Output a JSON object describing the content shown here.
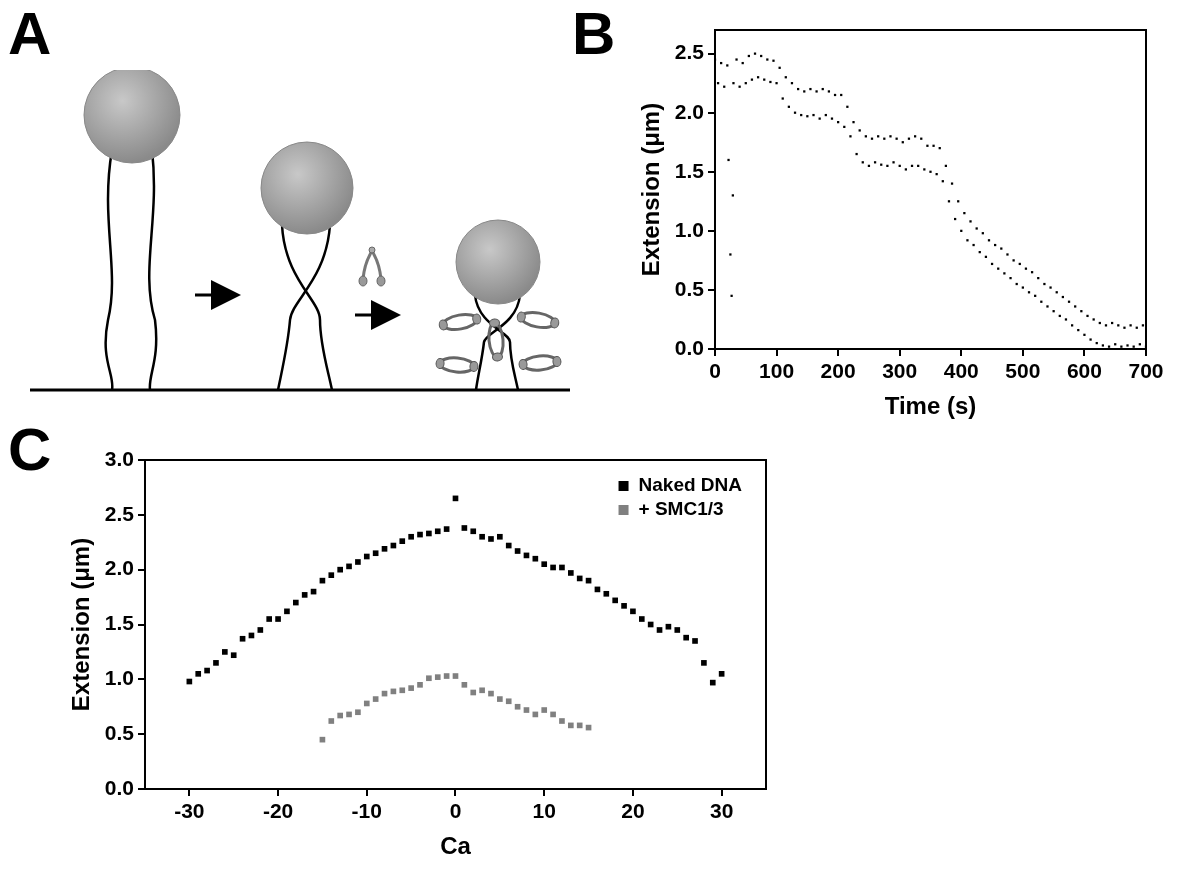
{
  "panel_labels": [
    "A",
    "B",
    "C"
  ],
  "chart_data": [
    {
      "type": "scatter",
      "x_label": "Time (s)",
      "y_label": "Extension (μm)",
      "x": [
        0,
        5,
        10,
        15,
        20,
        22,
        25,
        27,
        29,
        30,
        35,
        40,
        45,
        50,
        55,
        60,
        65,
        70,
        75,
        80,
        85,
        90,
        95,
        100,
        105,
        110,
        115,
        120,
        125,
        130,
        135,
        140,
        145,
        150,
        155,
        160,
        165,
        170,
        175,
        180,
        185,
        190,
        195,
        200,
        205,
        210,
        215,
        220,
        225,
        230,
        235,
        240,
        245,
        250,
        255,
        260,
        265,
        270,
        275,
        280,
        285,
        290,
        295,
        300,
        305,
        310,
        315,
        320,
        325,
        330,
        335,
        340,
        345,
        350,
        355,
        360,
        365,
        370,
        375,
        380,
        385,
        390,
        395,
        400,
        405,
        410,
        415,
        420,
        425,
        430,
        435,
        440,
        445,
        450,
        455,
        460,
        465,
        470,
        475,
        480,
        485,
        490,
        495,
        500,
        505,
        510,
        515,
        520,
        525,
        530,
        535,
        540,
        545,
        550,
        555,
        560,
        565,
        570,
        575,
        580,
        585,
        590,
        595,
        600,
        605,
        610,
        615,
        620,
        625,
        630,
        635,
        640,
        645,
        650,
        655,
        660,
        665,
        670,
        675,
        680,
        685,
        690,
        695,
        700
      ],
      "values": [
        2.45,
        2.25,
        2.42,
        2.22,
        2.4,
        1.6,
        0.8,
        0.45,
        1.3,
        2.25,
        2.45,
        2.22,
        2.42,
        2.25,
        2.48,
        2.28,
        2.5,
        2.3,
        2.48,
        2.28,
        2.45,
        2.26,
        2.44,
        2.25,
        2.38,
        2.12,
        2.3,
        2.05,
        2.25,
        2.0,
        2.2,
        1.98,
        2.18,
        1.97,
        2.2,
        1.98,
        2.18,
        1.95,
        2.2,
        1.98,
        2.18,
        1.95,
        2.15,
        1.92,
        2.15,
        1.88,
        2.05,
        1.8,
        1.92,
        1.65,
        1.85,
        1.58,
        1.8,
        1.55,
        1.78,
        1.58,
        1.8,
        1.56,
        1.78,
        1.55,
        1.8,
        1.58,
        1.78,
        1.55,
        1.75,
        1.52,
        1.78,
        1.55,
        1.8,
        1.55,
        1.78,
        1.52,
        1.72,
        1.5,
        1.72,
        1.48,
        1.7,
        1.42,
        1.55,
        1.25,
        1.4,
        1.1,
        1.25,
        1.0,
        1.15,
        0.92,
        1.08,
        0.88,
        1.02,
        0.82,
        0.98,
        0.78,
        0.92,
        0.72,
        0.88,
        0.68,
        0.85,
        0.64,
        0.8,
        0.6,
        0.75,
        0.55,
        0.72,
        0.52,
        0.68,
        0.48,
        0.65,
        0.45,
        0.6,
        0.4,
        0.55,
        0.36,
        0.52,
        0.32,
        0.48,
        0.28,
        0.44,
        0.25,
        0.4,
        0.2,
        0.36,
        0.16,
        0.32,
        0.12,
        0.28,
        0.08,
        0.25,
        0.05,
        0.22,
        0.03,
        0.2,
        0.02,
        0.22,
        0.04,
        0.2,
        0.02,
        0.18,
        0.03,
        0.2,
        0.02,
        0.18,
        0.04,
        0.2,
        0.02
      ],
      "color": "#000000",
      "marker": "square",
      "xlim": [
        0,
        700
      ],
      "xticks": [
        0,
        100,
        200,
        300,
        400,
        500,
        600,
        700
      ],
      "ylim": [
        0,
        2.7
      ],
      "yticks": [
        {
          "value": 0,
          "label": "0.0"
        },
        {
          "value": 0.5,
          "label": "0.5"
        },
        {
          "value": 1,
          "label": "1.0"
        },
        {
          "value": 1.5,
          "label": "1.5"
        },
        {
          "value": 2,
          "label": "2.0"
        },
        {
          "value": 2.5,
          "label": "2.5"
        }
      ],
      "grid": false
    },
    {
      "type": "scatter",
      "x_label": "Ca",
      "y_label": "Extension (μm)",
      "series": [
        {
          "name": "Naked DNA",
          "color": "#000000",
          "marker": "square",
          "x": [
            -30,
            -29,
            -28,
            -27,
            -26,
            -25,
            -24,
            -23,
            -22,
            -21,
            -20,
            -19,
            -18,
            -17,
            -16,
            -15,
            -14,
            -13,
            -12,
            -11,
            -10,
            -9,
            -8,
            -7,
            -6,
            -5,
            -4,
            -3,
            -2,
            -1,
            0,
            1,
            2,
            3,
            4,
            5,
            6,
            7,
            8,
            9,
            10,
            11,
            12,
            13,
            14,
            15,
            16,
            17,
            18,
            19,
            20,
            21,
            22,
            23,
            24,
            25,
            26,
            27,
            28,
            29,
            30
          ],
          "values": [
            0.98,
            1.05,
            1.08,
            1.15,
            1.25,
            1.22,
            1.37,
            1.4,
            1.45,
            1.55,
            1.55,
            1.62,
            1.7,
            1.77,
            1.8,
            1.9,
            1.95,
            2.0,
            2.03,
            2.07,
            2.12,
            2.15,
            2.19,
            2.22,
            2.26,
            2.3,
            2.32,
            2.33,
            2.35,
            2.37,
            2.65,
            2.38,
            2.35,
            2.3,
            2.28,
            2.3,
            2.22,
            2.17,
            2.13,
            2.1,
            2.05,
            2.02,
            2.02,
            1.97,
            1.92,
            1.9,
            1.82,
            1.78,
            1.72,
            1.67,
            1.62,
            1.55,
            1.5,
            1.45,
            1.48,
            1.45,
            1.38,
            1.35,
            1.15,
            0.97,
            1.05
          ]
        },
        {
          "name": "+ SMC1/3",
          "color": "#808080",
          "marker": "square",
          "x": [
            -15,
            -14,
            -13,
            -12,
            -11,
            -10,
            -9,
            -8,
            -7,
            -6,
            -5,
            -4,
            -3,
            -2,
            -1,
            0,
            1,
            2,
            3,
            4,
            5,
            6,
            7,
            8,
            9,
            10,
            11,
            12,
            13,
            14,
            15
          ],
          "values": [
            0.45,
            0.62,
            0.67,
            0.68,
            0.7,
            0.78,
            0.82,
            0.87,
            0.89,
            0.9,
            0.92,
            0.95,
            1.01,
            1.02,
            1.03,
            1.03,
            0.95,
            0.88,
            0.9,
            0.87,
            0.82,
            0.8,
            0.75,
            0.72,
            0.68,
            0.72,
            0.68,
            0.62,
            0.58,
            0.58,
            0.56
          ]
        }
      ],
      "xlim": [
        -35,
        35
      ],
      "xticks": [
        -30,
        -20,
        -10,
        0,
        10,
        20,
        30
      ],
      "ylim": [
        0,
        3
      ],
      "yticks": [
        {
          "value": 0,
          "label": "0.0"
        },
        {
          "value": 0.5,
          "label": "0.5"
        },
        {
          "value": 1,
          "label": "1.0"
        },
        {
          "value": 1.5,
          "label": "1.5"
        },
        {
          "value": 2,
          "label": "2.0"
        },
        {
          "value": 2.5,
          "label": "2.5"
        },
        {
          "value": 3,
          "label": "3.0"
        }
      ],
      "grid": false,
      "legend": "upper right"
    }
  ]
}
